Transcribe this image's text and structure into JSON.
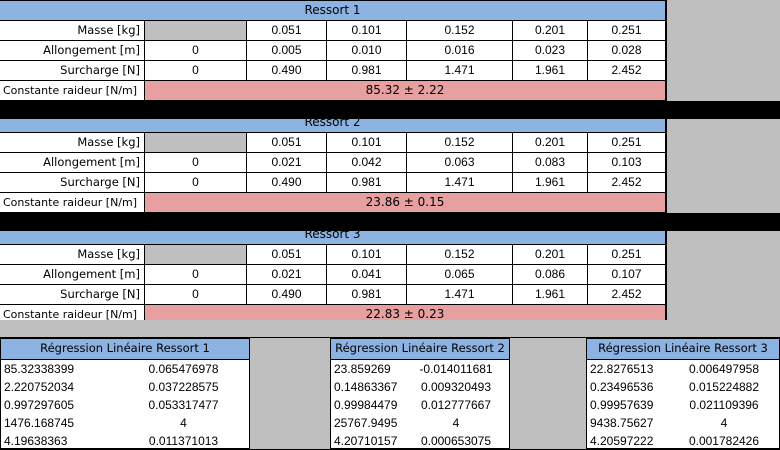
{
  "ressorts": [
    {
      "title": "Ressort 1",
      "masse_label": "Masse [kg]",
      "allongement_label": "Allongement [m]",
      "surcharge_label": "Surcharge [N]",
      "constante_label": "Constante raideur [N/m]",
      "masse": [
        "",
        "0.051",
        "0.101",
        "0.152",
        "0.201",
        "0.251"
      ],
      "allongement": [
        "0",
        "0.005",
        "0.010",
        "0.016",
        "0.023",
        "0.028"
      ],
      "surcharge": [
        "0",
        "0.490",
        "0.981",
        "1.471",
        "1.961",
        "2.452"
      ],
      "constante": "85.32 ± 2.22"
    },
    {
      "title": "Ressort 2",
      "masse_label": "Masse [kg]",
      "allongement_label": "Allongement [m]",
      "surcharge_label": "Surcharge [N]",
      "constante_label": "Constante raideur [N/m]",
      "masse": [
        "",
        "0.051",
        "0.101",
        "0.152",
        "0.201",
        "0.251"
      ],
      "allongement": [
        "0",
        "0.021",
        "0.042",
        "0.063",
        "0.083",
        "0.103"
      ],
      "surcharge": [
        "0",
        "0.490",
        "0.981",
        "1.471",
        "1.961",
        "2.452"
      ],
      "constante": "23.86 ± 0.15"
    },
    {
      "title": "Ressort 3",
      "masse_label": "Masse [kg]",
      "allongement_label": "Allongement [m]",
      "surcharge_label": "Surcharge [N]",
      "constante_label": "Constante raideur [N/m]",
      "masse": [
        "",
        "0.051",
        "0.101",
        "0.152",
        "0.201",
        "0.251"
      ],
      "allongement": [
        "0",
        "0.021",
        "0.041",
        "0.065",
        "0.086",
        "0.107"
      ],
      "surcharge": [
        "0",
        "0.490",
        "0.981",
        "1.471",
        "1.961",
        "2.452"
      ],
      "constante": "22.83 ± 0.23"
    }
  ],
  "regressions": [
    {
      "title": "Régression Linéaire Ressort 1",
      "rows": [
        [
          "85.32338399",
          "0.065476978"
        ],
        [
          "2.220752034",
          "0.037228575"
        ],
        [
          "0.997297605",
          "0.053317477"
        ],
        [
          "1476.168745",
          "4"
        ],
        [
          "4.19638363",
          "0.011371013"
        ]
      ]
    },
    {
      "title": "Régression Linéaire Ressort 2",
      "rows": [
        [
          "23.859269",
          "-0.014011681"
        ],
        [
          "0.14863367",
          "0.009320493"
        ],
        [
          "0.99984479",
          "0.012777667"
        ],
        [
          "25767.9495",
          "4"
        ],
        [
          "4.20710157",
          "0.000653075"
        ]
      ]
    },
    {
      "title": "Régression Linéaire Ressort 3",
      "rows": [
        [
          "22.8276513",
          "0.006497958"
        ],
        [
          "0.23496536",
          "0.015224882"
        ],
        [
          "0.99957639",
          "0.021109396"
        ],
        [
          "9438.75627",
          "4"
        ],
        [
          "4.20597222",
          "0.001782426"
        ]
      ]
    }
  ]
}
